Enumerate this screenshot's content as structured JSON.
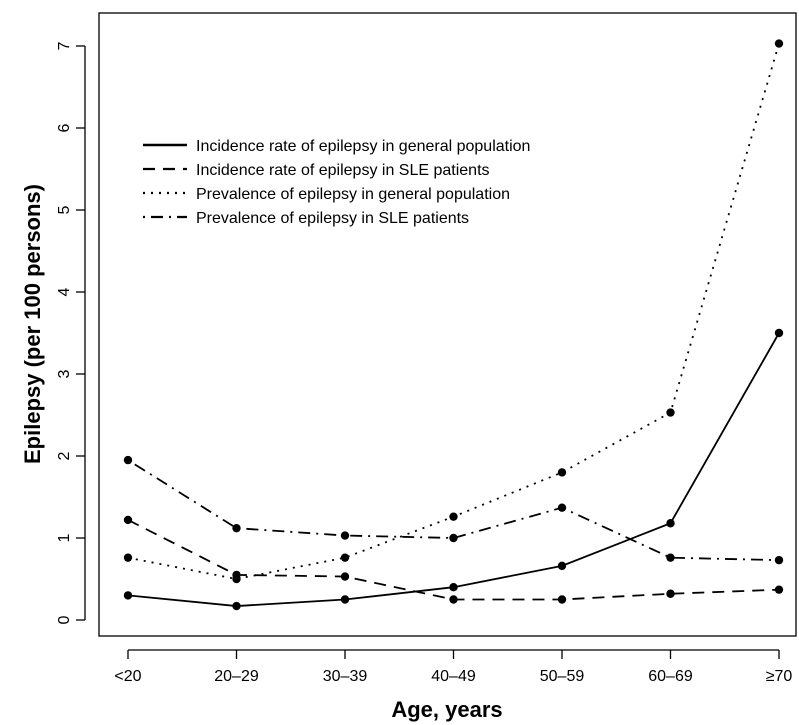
{
  "chart_data": {
    "type": "line",
    "title": "",
    "xlabel": "Age, years",
    "ylabel": "Epilepsy (per 100 persons)",
    "categories": [
      "<20",
      "20–29",
      "30–39",
      "40–49",
      "50–59",
      "60–69",
      "≥70"
    ],
    "ylim": [
      -0.3,
      7.35
    ],
    "yticks": [
      0,
      1,
      2,
      3,
      4,
      5,
      6,
      7
    ],
    "grid": false,
    "legend_position": "top-left",
    "series": [
      {
        "name": "Incidence rate of epilepsy in general population",
        "style": "solid",
        "values": [
          0.3,
          0.17,
          0.25,
          0.4,
          0.66,
          1.18,
          3.5
        ]
      },
      {
        "name": "Incidence rate of epilepsy in SLE patients",
        "style": "dashed",
        "values": [
          1.22,
          0.55,
          0.53,
          0.25,
          0.25,
          0.32,
          0.37
        ]
      },
      {
        "name": "Prevalence of epilepsy in general population",
        "style": "dotted",
        "values": [
          0.76,
          0.5,
          0.76,
          1.26,
          1.8,
          2.53,
          7.03
        ]
      },
      {
        "name": "Prevalence of epilepsy in SLE patients",
        "style": "dashdot",
        "values": [
          1.95,
          1.12,
          1.03,
          1.0,
          1.37,
          0.76,
          0.73
        ]
      }
    ]
  }
}
